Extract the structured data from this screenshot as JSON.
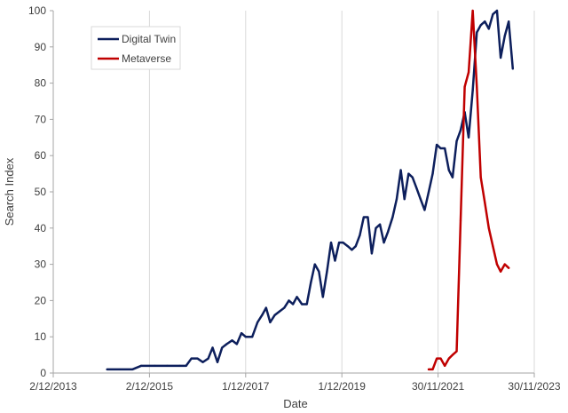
{
  "chart_data": {
    "type": "line",
    "xlabel": "Date",
    "ylabel": "Search Index",
    "xlim": [
      "2013-12-02",
      "2023-11-30"
    ],
    "ylim": [
      0,
      100
    ],
    "y_ticks": [
      0,
      10,
      20,
      30,
      40,
      50,
      60,
      70,
      80,
      90,
      100
    ],
    "x_ticks": [
      {
        "date": "2013-12-02",
        "label": "2/12/2013"
      },
      {
        "date": "2015-12-02",
        "label": "2/12/2015"
      },
      {
        "date": "2017-12-01",
        "label": "1/12/2017"
      },
      {
        "date": "2019-12-01",
        "label": "1/12/2019"
      },
      {
        "date": "2021-11-30",
        "label": "30/11/2021"
      },
      {
        "date": "2023-11-30",
        "label": "30/11/2023"
      }
    ],
    "grid": "vertical",
    "legend_position": "top-left",
    "series": [
      {
        "name": "Digital Twin",
        "color": "#0d1f5c",
        "points": [
          [
            "2015-01-15",
            1
          ],
          [
            "2015-04-20",
            1
          ],
          [
            "2015-07-25",
            1
          ],
          [
            "2015-10-01",
            2
          ],
          [
            "2016-01-10",
            2
          ],
          [
            "2016-04-15",
            2
          ],
          [
            "2016-07-20",
            2
          ],
          [
            "2016-09-05",
            2
          ],
          [
            "2016-10-15",
            4
          ],
          [
            "2016-12-01",
            4
          ],
          [
            "2017-01-10",
            3
          ],
          [
            "2017-02-20",
            4
          ],
          [
            "2017-03-25",
            7
          ],
          [
            "2017-05-01",
            3
          ],
          [
            "2017-06-05",
            7
          ],
          [
            "2017-07-10",
            8
          ],
          [
            "2017-08-20",
            9
          ],
          [
            "2017-09-25",
            8
          ],
          [
            "2017-10-30",
            11
          ],
          [
            "2017-12-01",
            10
          ],
          [
            "2018-01-20",
            10
          ],
          [
            "2018-03-01",
            14
          ],
          [
            "2018-04-05",
            16
          ],
          [
            "2018-05-05",
            18
          ],
          [
            "2018-06-05",
            14
          ],
          [
            "2018-07-10",
            16
          ],
          [
            "2018-08-15",
            17
          ],
          [
            "2018-09-20",
            18
          ],
          [
            "2018-10-25",
            20
          ],
          [
            "2018-11-25",
            19
          ],
          [
            "2018-12-25",
            21
          ],
          [
            "2019-02-01",
            19
          ],
          [
            "2019-03-10",
            19
          ],
          [
            "2019-04-10",
            25
          ],
          [
            "2019-05-10",
            30
          ],
          [
            "2019-06-10",
            28
          ],
          [
            "2019-07-10",
            21
          ],
          [
            "2019-08-10",
            28
          ],
          [
            "2019-09-10",
            36
          ],
          [
            "2019-10-10",
            31
          ],
          [
            "2019-11-10",
            36
          ],
          [
            "2019-12-10",
            36
          ],
          [
            "2020-01-15",
            35
          ],
          [
            "2020-02-15",
            34
          ],
          [
            "2020-03-15",
            35
          ],
          [
            "2020-04-15",
            38
          ],
          [
            "2020-05-15",
            43
          ],
          [
            "2020-06-15",
            43
          ],
          [
            "2020-07-15",
            33
          ],
          [
            "2020-08-15",
            40
          ],
          [
            "2020-09-15",
            41
          ],
          [
            "2020-10-15",
            36
          ],
          [
            "2020-11-15",
            39
          ],
          [
            "2020-12-20",
            43
          ],
          [
            "2021-01-20",
            48
          ],
          [
            "2021-02-20",
            56
          ],
          [
            "2021-03-20",
            48
          ],
          [
            "2021-04-20",
            55
          ],
          [
            "2021-05-20",
            54
          ],
          [
            "2021-06-20",
            51
          ],
          [
            "2021-07-20",
            48
          ],
          [
            "2021-08-20",
            45
          ],
          [
            "2021-09-20",
            50
          ],
          [
            "2021-10-20",
            55
          ],
          [
            "2021-11-20",
            63
          ],
          [
            "2021-12-20",
            62
          ],
          [
            "2022-01-20",
            62
          ],
          [
            "2022-02-20",
            56
          ],
          [
            "2022-03-20",
            54
          ],
          [
            "2022-04-20",
            64
          ],
          [
            "2022-05-20",
            67
          ],
          [
            "2022-06-20",
            72
          ],
          [
            "2022-07-20",
            65
          ],
          [
            "2022-08-20",
            78
          ],
          [
            "2022-09-20",
            94
          ],
          [
            "2022-10-20",
            96
          ],
          [
            "2022-11-20",
            97
          ],
          [
            "2022-12-20",
            95
          ],
          [
            "2023-01-20",
            99
          ],
          [
            "2023-02-20",
            100
          ],
          [
            "2023-03-20",
            87
          ],
          [
            "2023-04-20",
            93
          ],
          [
            "2023-05-20",
            97
          ],
          [
            "2023-06-20",
            84
          ]
        ]
      },
      {
        "name": "Metaverse",
        "color": "#c00000",
        "points": [
          [
            "2021-09-20",
            1
          ],
          [
            "2021-10-20",
            1
          ],
          [
            "2021-11-20",
            4
          ],
          [
            "2021-12-20",
            4
          ],
          [
            "2022-01-20",
            2
          ],
          [
            "2022-02-20",
            4
          ],
          [
            "2022-03-20",
            5
          ],
          [
            "2022-04-20",
            6
          ],
          [
            "2022-05-20",
            42
          ],
          [
            "2022-06-20",
            79
          ],
          [
            "2022-07-20",
            83
          ],
          [
            "2022-08-20",
            100
          ],
          [
            "2022-09-20",
            79
          ],
          [
            "2022-10-20",
            54
          ],
          [
            "2022-11-20",
            47
          ],
          [
            "2022-12-20",
            40
          ],
          [
            "2023-01-20",
            35
          ],
          [
            "2023-02-20",
            30
          ],
          [
            "2023-03-20",
            28
          ],
          [
            "2023-04-20",
            30
          ],
          [
            "2023-05-20",
            29
          ]
        ]
      }
    ]
  }
}
